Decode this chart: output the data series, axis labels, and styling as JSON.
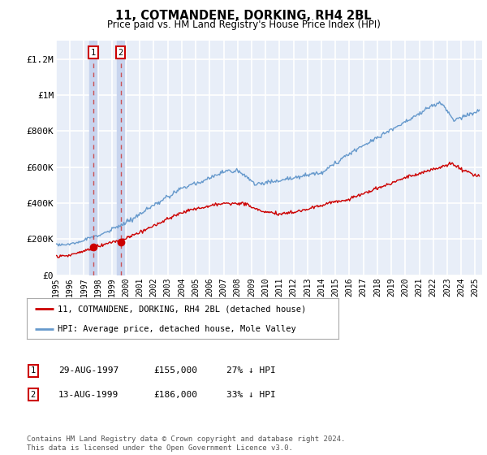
{
  "title": "11, COTMANDENE, DORKING, RH4 2BL",
  "subtitle": "Price paid vs. HM Land Registry's House Price Index (HPI)",
  "ylim": [
    0,
    1300000
  ],
  "xlim_start": 1995.0,
  "xlim_end": 2025.5,
  "yticks": [
    0,
    200000,
    400000,
    600000,
    800000,
    1000000,
    1200000
  ],
  "ytick_labels": [
    "£0",
    "£200K",
    "£400K",
    "£600K",
    "£800K",
    "£1M",
    "£1.2M"
  ],
  "background_color": "#e8eef8",
  "grid_color": "#ffffff",
  "transaction1_date": 1997.66,
  "transaction1_price": 155000,
  "transaction2_date": 1999.62,
  "transaction2_price": 186000,
  "legend_property_label": "11, COTMANDENE, DORKING, RH4 2BL (detached house)",
  "legend_hpi_label": "HPI: Average price, detached house, Mole Valley",
  "footer_text": "Contains HM Land Registry data © Crown copyright and database right 2024.\nThis data is licensed under the Open Government Licence v3.0.",
  "table_rows": [
    [
      "1",
      "29-AUG-1997",
      "£155,000",
      "27% ↓ HPI"
    ],
    [
      "2",
      "13-AUG-1999",
      "£186,000",
      "33% ↓ HPI"
    ]
  ],
  "property_line_color": "#cc0000",
  "hpi_line_color": "#6699cc",
  "dashed_line_color": "#cc4444",
  "span_color": "#c8d4ee"
}
